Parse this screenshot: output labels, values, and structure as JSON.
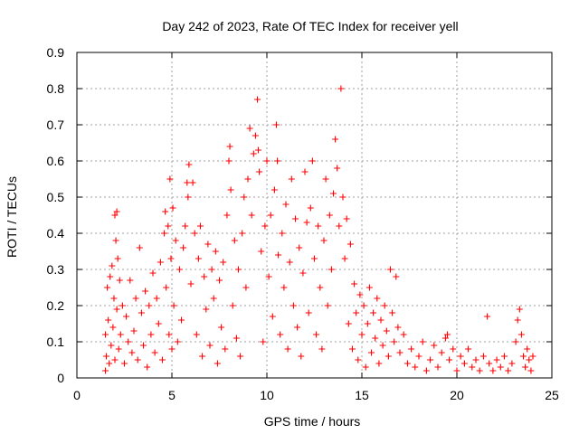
{
  "chart_data": {
    "type": "scatter",
    "title": "Day 242 of 2023, Rate Of TEC Index for receiver yell",
    "xlabel": "GPS time / hours",
    "ylabel": "ROTI / TECUs",
    "xlim": [
      0,
      25
    ],
    "ylim": [
      0,
      0.9
    ],
    "xticks": [
      0,
      5,
      10,
      15,
      20,
      25
    ],
    "yticks": [
      0,
      0.1,
      0.2,
      0.3,
      0.4,
      0.5,
      0.6,
      0.7,
      0.8,
      0.9
    ],
    "xtick_labels": [
      "0",
      "5",
      "10",
      "15",
      "20",
      "25"
    ],
    "ytick_labels": [
      "0",
      "0.1",
      "0.2",
      "0.3",
      "0.4",
      "0.5",
      "0.6",
      "0.7",
      "0.8",
      "0.9"
    ],
    "grid": true,
    "marker": "+",
    "color": "#ff0000",
    "series": [
      {
        "points": [
          [
            1.5,
            0.02
          ],
          [
            1.5,
            0.12
          ],
          [
            1.55,
            0.06
          ],
          [
            1.6,
            0.25
          ],
          [
            1.65,
            0.16
          ],
          [
            1.7,
            0.04
          ],
          [
            1.75,
            0.28
          ],
          [
            1.8,
            0.09
          ],
          [
            1.85,
            0.31
          ],
          [
            1.9,
            0.14
          ],
          [
            1.95,
            0.22
          ],
          [
            2.0,
            0.45
          ],
          [
            2.0,
            0.05
          ],
          [
            2.05,
            0.38
          ],
          [
            2.1,
            0.46
          ],
          [
            2.1,
            0.19
          ],
          [
            2.15,
            0.33
          ],
          [
            2.2,
            0.08
          ],
          [
            2.25,
            0.27
          ],
          [
            2.3,
            0.12
          ],
          [
            2.4,
            0.2
          ],
          [
            2.5,
            0.04
          ],
          [
            2.6,
            0.17
          ],
          [
            2.7,
            0.1
          ],
          [
            2.8,
            0.27
          ],
          [
            2.9,
            0.07
          ],
          [
            3.0,
            0.13
          ],
          [
            3.1,
            0.22
          ],
          [
            3.2,
            0.05
          ],
          [
            3.3,
            0.36
          ],
          [
            3.4,
            0.18
          ],
          [
            3.5,
            0.09
          ],
          [
            3.6,
            0.24
          ],
          [
            3.7,
            0.03
          ],
          [
            3.8,
            0.2
          ],
          [
            3.9,
            0.12
          ],
          [
            4.0,
            0.29
          ],
          [
            4.1,
            0.07
          ],
          [
            4.2,
            0.22
          ],
          [
            4.3,
            0.15
          ],
          [
            4.4,
            0.32
          ],
          [
            4.5,
            0.05
          ],
          [
            4.6,
            0.4
          ],
          [
            4.65,
            0.46
          ],
          [
            4.7,
            0.25
          ],
          [
            4.8,
            0.42
          ],
          [
            4.85,
            0.12
          ],
          [
            4.9,
            0.55
          ],
          [
            4.95,
            0.33
          ],
          [
            5.0,
            0.08
          ],
          [
            5.05,
            0.47
          ],
          [
            5.1,
            0.2
          ],
          [
            5.2,
            0.38
          ],
          [
            5.3,
            0.1
          ],
          [
            5.4,
            0.3
          ],
          [
            5.5,
            0.16
          ],
          [
            5.6,
            0.36
          ],
          [
            5.7,
            0.42
          ],
          [
            5.8,
            0.54
          ],
          [
            5.85,
            0.5
          ],
          [
            5.9,
            0.59
          ],
          [
            6.0,
            0.26
          ],
          [
            6.1,
            0.54
          ],
          [
            6.2,
            0.4
          ],
          [
            6.3,
            0.12
          ],
          [
            6.4,
            0.33
          ],
          [
            6.5,
            0.42
          ],
          [
            6.6,
            0.06
          ],
          [
            6.7,
            0.28
          ],
          [
            6.8,
            0.19
          ],
          [
            6.9,
            0.37
          ],
          [
            7.0,
            0.09
          ],
          [
            7.1,
            0.3
          ],
          [
            7.2,
            0.22
          ],
          [
            7.3,
            0.35
          ],
          [
            7.4,
            0.04
          ],
          [
            7.5,
            0.27
          ],
          [
            7.6,
            0.14
          ],
          [
            7.7,
            0.32
          ],
          [
            7.8,
            0.08
          ],
          [
            7.9,
            0.45
          ],
          [
            8.0,
            0.6
          ],
          [
            8.05,
            0.64
          ],
          [
            8.1,
            0.52
          ],
          [
            8.2,
            0.2
          ],
          [
            8.3,
            0.38
          ],
          [
            8.4,
            0.11
          ],
          [
            8.5,
            0.3
          ],
          [
            8.6,
            0.06
          ],
          [
            8.7,
            0.4
          ],
          [
            8.8,
            0.5
          ],
          [
            8.9,
            0.25
          ],
          [
            9.0,
            0.55
          ],
          [
            9.1,
            0.69
          ],
          [
            9.2,
            0.45
          ],
          [
            9.3,
            0.62
          ],
          [
            9.4,
            0.67
          ],
          [
            9.5,
            0.77
          ],
          [
            9.55,
            0.63
          ],
          [
            9.6,
            0.57
          ],
          [
            9.7,
            0.35
          ],
          [
            9.8,
            0.1
          ],
          [
            9.9,
            0.42
          ],
          [
            10.0,
            0.6
          ],
          [
            10.1,
            0.28
          ],
          [
            10.2,
            0.45
          ],
          [
            10.3,
            0.17
          ],
          [
            10.4,
            0.52
          ],
          [
            10.5,
            0.7
          ],
          [
            10.55,
            0.6
          ],
          [
            10.6,
            0.34
          ],
          [
            10.7,
            0.12
          ],
          [
            10.8,
            0.4
          ],
          [
            10.9,
            0.25
          ],
          [
            11.0,
            0.48
          ],
          [
            11.1,
            0.08
          ],
          [
            11.2,
            0.32
          ],
          [
            11.3,
            0.55
          ],
          [
            11.4,
            0.2
          ],
          [
            11.5,
            0.44
          ],
          [
            11.6,
            0.14
          ],
          [
            11.7,
            0.36
          ],
          [
            11.8,
            0.06
          ],
          [
            11.9,
            0.29
          ],
          [
            12.0,
            0.57
          ],
          [
            12.1,
            0.43
          ],
          [
            12.2,
            0.18
          ],
          [
            12.3,
            0.47
          ],
          [
            12.4,
            0.6
          ],
          [
            12.5,
            0.33
          ],
          [
            12.6,
            0.12
          ],
          [
            12.7,
            0.42
          ],
          [
            12.8,
            0.25
          ],
          [
            12.9,
            0.08
          ],
          [
            13.0,
            0.38
          ],
          [
            13.1,
            0.55
          ],
          [
            13.2,
            0.2
          ],
          [
            13.3,
            0.45
          ],
          [
            13.4,
            0.3
          ],
          [
            13.5,
            0.51
          ],
          [
            13.6,
            0.66
          ],
          [
            13.7,
            0.58
          ],
          [
            13.8,
            0.42
          ],
          [
            13.9,
            0.8
          ],
          [
            14.0,
            0.5
          ],
          [
            14.1,
            0.33
          ],
          [
            14.2,
            0.44
          ],
          [
            14.3,
            0.15
          ],
          [
            14.4,
            0.37
          ],
          [
            14.5,
            0.08
          ],
          [
            14.6,
            0.26
          ],
          [
            14.7,
            0.18
          ],
          [
            14.8,
            0.05
          ],
          [
            14.9,
            0.23
          ],
          [
            15.0,
            0.12
          ],
          [
            15.1,
            0.2
          ],
          [
            15.2,
            0.03
          ],
          [
            15.3,
            0.15
          ],
          [
            15.4,
            0.25
          ],
          [
            15.5,
            0.07
          ],
          [
            15.6,
            0.18
          ],
          [
            15.7,
            0.11
          ],
          [
            15.8,
            0.22
          ],
          [
            15.9,
            0.04
          ],
          [
            16.0,
            0.16
          ],
          [
            16.1,
            0.09
          ],
          [
            16.2,
            0.2
          ],
          [
            16.3,
            0.13
          ],
          [
            16.4,
            0.06
          ],
          [
            16.5,
            0.3
          ],
          [
            16.6,
            0.18
          ],
          [
            16.7,
            0.1
          ],
          [
            16.8,
            0.28
          ],
          [
            16.9,
            0.14
          ],
          [
            17.0,
            0.07
          ],
          [
            17.2,
            0.12
          ],
          [
            17.4,
            0.04
          ],
          [
            17.6,
            0.08
          ],
          [
            17.8,
            0.03
          ],
          [
            18.0,
            0.06
          ],
          [
            18.2,
            0.1
          ],
          [
            18.4,
            0.02
          ],
          [
            18.6,
            0.05
          ],
          [
            18.8,
            0.09
          ],
          [
            19.0,
            0.03
          ],
          [
            19.2,
            0.07
          ],
          [
            19.4,
            0.11
          ],
          [
            19.5,
            0.12
          ],
          [
            19.6,
            0.05
          ],
          [
            19.8,
            0.08
          ],
          [
            20.0,
            0.02
          ],
          [
            20.2,
            0.06
          ],
          [
            20.4,
            0.04
          ],
          [
            20.6,
            0.08
          ],
          [
            20.8,
            0.03
          ],
          [
            21.0,
            0.05
          ],
          [
            21.2,
            0.02
          ],
          [
            21.4,
            0.06
          ],
          [
            21.6,
            0.17
          ],
          [
            21.7,
            0.04
          ],
          [
            21.9,
            0.02
          ],
          [
            22.1,
            0.05
          ],
          [
            22.3,
            0.03
          ],
          [
            22.5,
            0.06
          ],
          [
            22.7,
            0.02
          ],
          [
            22.9,
            0.04
          ],
          [
            23.1,
            0.1
          ],
          [
            23.2,
            0.16
          ],
          [
            23.3,
            0.19
          ],
          [
            23.4,
            0.12
          ],
          [
            23.5,
            0.06
          ],
          [
            23.6,
            0.03
          ],
          [
            23.7,
            0.08
          ],
          [
            23.8,
            0.05
          ],
          [
            23.9,
            0.02
          ],
          [
            24.0,
            0.06
          ]
        ]
      }
    ]
  }
}
